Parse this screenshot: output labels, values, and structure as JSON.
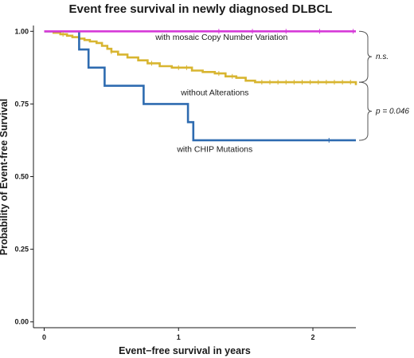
{
  "chart_data": {
    "type": "line",
    "title": "Event free survival in newly diagnosed DLBCL",
    "xlabel": "Event−free survival in years",
    "ylabel": "Probability of Event-free Survival",
    "xlim": [
      -0.08,
      2.32
    ],
    "ylim": [
      -0.02,
      1.02
    ],
    "x_ticks": [
      0,
      1,
      2
    ],
    "x_tick_labels": [
      "0",
      "1",
      "2"
    ],
    "y_ticks": [
      0,
      0.25,
      0.5,
      0.75,
      1.0
    ],
    "y_tick_labels": [
      "0.00",
      "0.25",
      "0.50",
      "0.75",
      "1.00"
    ],
    "grid": false,
    "series": [
      {
        "name": "with mosaic Copy Number Variation",
        "color": "#d63bd8",
        "points": [
          [
            0,
            1.0
          ],
          [
            2.32,
            1.0
          ]
        ],
        "censor_x": [
          1.3,
          1.55,
          1.8,
          2.05,
          2.3
        ]
      },
      {
        "name": "without Alterations",
        "color": "#d8b530",
        "points": [
          [
            0,
            1.0
          ],
          [
            0.07,
            1.0
          ],
          [
            0.07,
            0.995
          ],
          [
            0.12,
            0.995
          ],
          [
            0.12,
            0.99
          ],
          [
            0.17,
            0.99
          ],
          [
            0.17,
            0.985
          ],
          [
            0.21,
            0.985
          ],
          [
            0.21,
            0.98
          ],
          [
            0.26,
            0.98
          ],
          [
            0.26,
            0.975
          ],
          [
            0.3,
            0.975
          ],
          [
            0.3,
            0.97
          ],
          [
            0.34,
            0.97
          ],
          [
            0.34,
            0.965
          ],
          [
            0.39,
            0.965
          ],
          [
            0.39,
            0.96
          ],
          [
            0.43,
            0.96
          ],
          [
            0.43,
            0.95
          ],
          [
            0.47,
            0.95
          ],
          [
            0.47,
            0.94
          ],
          [
            0.5,
            0.94
          ],
          [
            0.5,
            0.93
          ],
          [
            0.55,
            0.93
          ],
          [
            0.55,
            0.92
          ],
          [
            0.62,
            0.92
          ],
          [
            0.62,
            0.91
          ],
          [
            0.7,
            0.91
          ],
          [
            0.7,
            0.9
          ],
          [
            0.77,
            0.9
          ],
          [
            0.77,
            0.89
          ],
          [
            0.86,
            0.89
          ],
          [
            0.86,
            0.88
          ],
          [
            0.95,
            0.88
          ],
          [
            0.95,
            0.875
          ],
          [
            1.1,
            0.875
          ],
          [
            1.1,
            0.865
          ],
          [
            1.18,
            0.865
          ],
          [
            1.18,
            0.86
          ],
          [
            1.27,
            0.86
          ],
          [
            1.27,
            0.855
          ],
          [
            1.35,
            0.855
          ],
          [
            1.35,
            0.845
          ],
          [
            1.43,
            0.845
          ],
          [
            1.43,
            0.84
          ],
          [
            1.5,
            0.84
          ],
          [
            1.5,
            0.83
          ],
          [
            1.57,
            0.83
          ],
          [
            1.57,
            0.825
          ],
          [
            2.32,
            0.825
          ],
          [
            2.32,
            0.815
          ]
        ],
        "censor_x": [
          0.14,
          0.5,
          0.8,
          1.0,
          1.06,
          1.3,
          1.4,
          1.62,
          1.68,
          1.74,
          1.8,
          1.86,
          1.92,
          1.98,
          2.04,
          2.1,
          2.16,
          2.22,
          2.28
        ]
      },
      {
        "name": "with CHIP Mutations",
        "color": "#2e6bb0",
        "points": [
          [
            0,
            1.0
          ],
          [
            0.26,
            1.0
          ],
          [
            0.26,
            0.9375
          ],
          [
            0.33,
            0.9375
          ],
          [
            0.33,
            0.875
          ],
          [
            0.45,
            0.875
          ],
          [
            0.45,
            0.8125
          ],
          [
            0.74,
            0.8125
          ],
          [
            0.74,
            0.75
          ],
          [
            1.07,
            0.75
          ],
          [
            1.07,
            0.6875
          ],
          [
            1.11,
            0.6875
          ],
          [
            1.11,
            0.625
          ],
          [
            2.32,
            0.625
          ]
        ],
        "censor_x": [
          2.12
        ]
      }
    ],
    "annotations": [
      {
        "text": "with mosaic Copy Number Variation",
        "x": 1.32,
        "y": 0.97
      },
      {
        "text": "without Alterations",
        "x": 1.27,
        "y": 0.78
      },
      {
        "text": "with CHIP Mutations",
        "x": 1.27,
        "y": 0.585
      }
    ],
    "comparisons": [
      {
        "label": "n.s.",
        "y_range": [
          0.825,
          1.0
        ]
      },
      {
        "label": "p = 0.046",
        "y_range": [
          0.625,
          0.825
        ]
      }
    ]
  }
}
